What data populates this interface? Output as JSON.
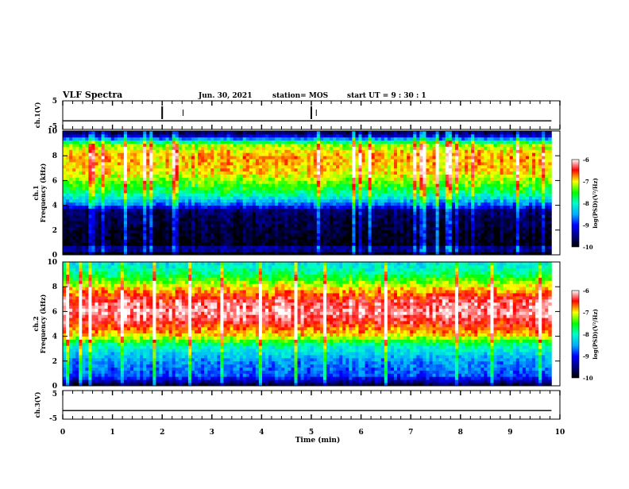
{
  "header": {
    "title": "VLF Spectra",
    "date": "Jun. 30, 2021",
    "station": "station= MOS",
    "start_ut": "start  UT =   9 : 30 : 1"
  },
  "colors": {
    "background": "#ffffff",
    "axes": "#000000",
    "colormap": [
      "#000000",
      "#000080",
      "#0000ff",
      "#00aaff",
      "#00ffcc",
      "#00ff00",
      "#ffff00",
      "#ff0000",
      "#ffffff"
    ]
  },
  "chart_data": [
    {
      "type": "line",
      "ylabel": "ch.1(V)",
      "ylim": [
        -5,
        5
      ],
      "yticks": [
        "5",
        "-5"
      ],
      "x": [
        0,
        9.83
      ],
      "values": [
        -2.0,
        -2.0
      ],
      "grid": false
    },
    {
      "type": "heatmap",
      "ylabel": "ch.1\nFrequency (kHz)",
      "ylim": [
        0,
        10
      ],
      "yticks": [
        "0",
        "2",
        "4",
        "6",
        "8",
        "10"
      ],
      "xlim": [
        0,
        10
      ],
      "data_end_min": 9.83,
      "colorbar": {
        "label": "log(PSD)(V²/Hz)",
        "range": [
          -10,
          -6
        ],
        "ticks": [
          "-6",
          "-7",
          "-8",
          "-9",
          "-10"
        ]
      },
      "profile": [
        {
          "f": 0.3,
          "level": -10
        },
        {
          "f": 0.5,
          "level": -8.6
        },
        {
          "f": 0.7,
          "level": -10
        },
        {
          "f": 3.6,
          "level": -9.6
        },
        {
          "f": 4.0,
          "level": -8.8
        },
        {
          "f": 5.0,
          "level": -7.8
        },
        {
          "f": 6.5,
          "level": -7.0
        },
        {
          "f": 8.0,
          "level": -6.8
        },
        {
          "f": 9.0,
          "level": -7.3
        },
        {
          "f": 9.5,
          "level": -9.0
        },
        {
          "f": 10.0,
          "level": -9.8
        }
      ]
    },
    {
      "type": "heatmap",
      "ylabel": "ch.2\nFrequency (kHz)",
      "ylim": [
        0,
        10
      ],
      "yticks": [
        "0",
        "2",
        "4",
        "6",
        "8",
        "10"
      ],
      "xlim": [
        0,
        10
      ],
      "data_end_min": 9.83,
      "colorbar": {
        "label": "log(PSD)(V²/Hz)",
        "range": [
          -10,
          -6
        ],
        "ticks": [
          "-6",
          "-7",
          "-8",
          "-9",
          "-10"
        ]
      },
      "profile": [
        {
          "f": 0.1,
          "level": -9.8
        },
        {
          "f": 0.8,
          "level": -8.8
        },
        {
          "f": 2.0,
          "level": -8.6
        },
        {
          "f": 3.2,
          "level": -8.0
        },
        {
          "f": 4.0,
          "level": -7.0
        },
        {
          "f": 5.0,
          "level": -6.5
        },
        {
          "f": 6.0,
          "level": -6.15
        },
        {
          "f": 7.0,
          "level": -6.4
        },
        {
          "f": 8.0,
          "level": -7.0
        },
        {
          "f": 9.0,
          "level": -7.8
        },
        {
          "f": 10.0,
          "level": -8.2
        }
      ]
    },
    {
      "type": "line",
      "ylabel": "ch.3(V)",
      "ylim": [
        -5,
        5
      ],
      "yticks": [
        "5",
        "-5"
      ],
      "x": [
        0,
        9.83
      ],
      "values": [
        -2.0,
        -2.0
      ],
      "grid": false
    }
  ],
  "x_axis": {
    "label": "Time (min)",
    "ticks": [
      "0",
      "1",
      "2",
      "3",
      "4",
      "5",
      "6",
      "7",
      "8",
      "9",
      "10"
    ],
    "range": [
      0,
      10
    ]
  }
}
